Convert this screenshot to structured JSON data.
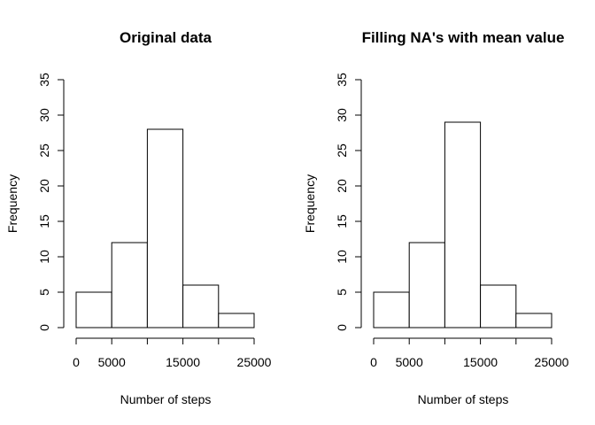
{
  "chart_data": [
    {
      "type": "bar",
      "title": "Original data",
      "xlabel": "Number of steps",
      "ylabel": "Frequency",
      "bins": [
        [
          0,
          5000
        ],
        [
          5000,
          10000
        ],
        [
          10000,
          15000
        ],
        [
          15000,
          20000
        ],
        [
          20000,
          25000
        ]
      ],
      "values": [
        5,
        12,
        28,
        6,
        2
      ],
      "xlim": [
        0,
        25000
      ],
      "ylim": [
        0,
        35
      ],
      "x_ticks": [
        0,
        5000,
        15000,
        25000
      ],
      "x_minor_ticks": [
        10000,
        20000
      ],
      "y_ticks": [
        0,
        5,
        10,
        15,
        20,
        25,
        30,
        35
      ],
      "grid": false
    },
    {
      "type": "bar",
      "title": "Filling NA's with mean value",
      "xlabel": "Number of steps",
      "ylabel": "Frequency",
      "bins": [
        [
          0,
          5000
        ],
        [
          5000,
          10000
        ],
        [
          10000,
          15000
        ],
        [
          15000,
          20000
        ],
        [
          20000,
          25000
        ]
      ],
      "values": [
        5,
        12,
        29,
        6,
        2
      ],
      "xlim": [
        0,
        25000
      ],
      "ylim": [
        0,
        35
      ],
      "x_ticks": [
        0,
        5000,
        15000,
        25000
      ],
      "x_minor_ticks": [
        10000,
        20000
      ],
      "y_ticks": [
        0,
        5,
        10,
        15,
        20,
        25,
        30,
        35
      ],
      "grid": false
    }
  ]
}
